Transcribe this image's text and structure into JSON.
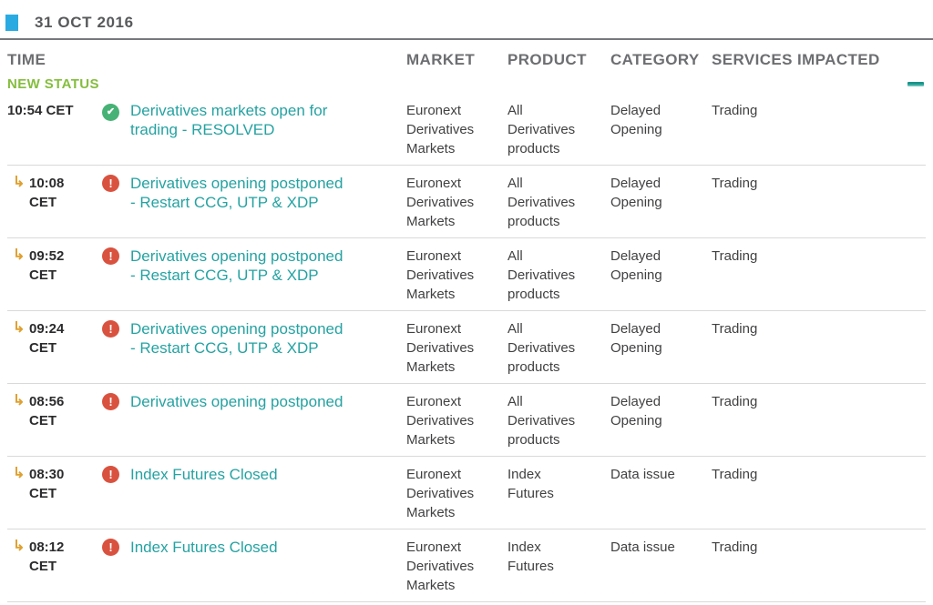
{
  "header": {
    "date": "31 OCT 2016"
  },
  "table": {
    "columns": [
      "TIME",
      "MARKET",
      "PRODUCT",
      "CATEGORY",
      "SERVICES IMPACTED"
    ],
    "group_label": "NEW STATUS",
    "collapse_control": "minus",
    "icons": {
      "resolved": "✔",
      "error": "!",
      "sub_arrow": "↳"
    },
    "colors": {
      "link_teal": "#25a2a2",
      "resolved_green": "#47b275",
      "error_red": "#d9523f",
      "arrow_orange": "#dfa02f",
      "new_status_green": "#85bd3e",
      "date_bullet_cyan": "#29abe2"
    },
    "rows": [
      {
        "time_lines": [
          "10:54 CET"
        ],
        "indented": false,
        "status_icon": "resolved",
        "title_lines": [
          "Derivatives markets open for",
          "trading - RESOLVED"
        ],
        "market": "Euronext Derivatives Markets",
        "product": "All Derivatives products",
        "category": "Delayed Opening",
        "services": "Trading"
      },
      {
        "time_lines": [
          "10:08",
          "CET"
        ],
        "indented": true,
        "status_icon": "error",
        "title_lines": [
          "Derivatives opening postponed",
          "- Restart CCG, UTP & XDP"
        ],
        "market": "Euronext Derivatives Markets",
        "product": "All Derivatives products",
        "category": "Delayed Opening",
        "services": "Trading"
      },
      {
        "time_lines": [
          "09:52",
          "CET"
        ],
        "indented": true,
        "status_icon": "error",
        "title_lines": [
          "Derivatives opening postponed",
          "- Restart CCG, UTP & XDP"
        ],
        "market": "Euronext Derivatives Markets",
        "product": "All Derivatives products",
        "category": "Delayed Opening",
        "services": "Trading"
      },
      {
        "time_lines": [
          "09:24",
          "CET"
        ],
        "indented": true,
        "status_icon": "error",
        "title_lines": [
          "Derivatives opening postponed",
          "- Restart CCG, UTP & XDP"
        ],
        "market": "Euronext Derivatives Markets",
        "product": "All Derivatives products",
        "category": "Delayed Opening",
        "services": "Trading"
      },
      {
        "time_lines": [
          "08:56",
          "CET"
        ],
        "indented": true,
        "status_icon": "error",
        "title_lines": [
          "Derivatives opening postponed"
        ],
        "market": "Euronext Derivatives Markets",
        "product": "All Derivatives products",
        "category": "Delayed Opening",
        "services": "Trading"
      },
      {
        "time_lines": [
          "08:30",
          "CET"
        ],
        "indented": true,
        "status_icon": "error",
        "title_lines": [
          "Index Futures Closed"
        ],
        "market": "Euronext Derivatives Markets",
        "product": "Index Futures",
        "category": "Data issue",
        "services": "Trading"
      },
      {
        "time_lines": [
          "08:12",
          "CET"
        ],
        "indented": true,
        "status_icon": "error",
        "title_lines": [
          "Index Futures Closed"
        ],
        "market": "Euronext Derivatives Markets",
        "product": "Index Futures",
        "category": "Data issue",
        "services": "Trading"
      }
    ]
  }
}
